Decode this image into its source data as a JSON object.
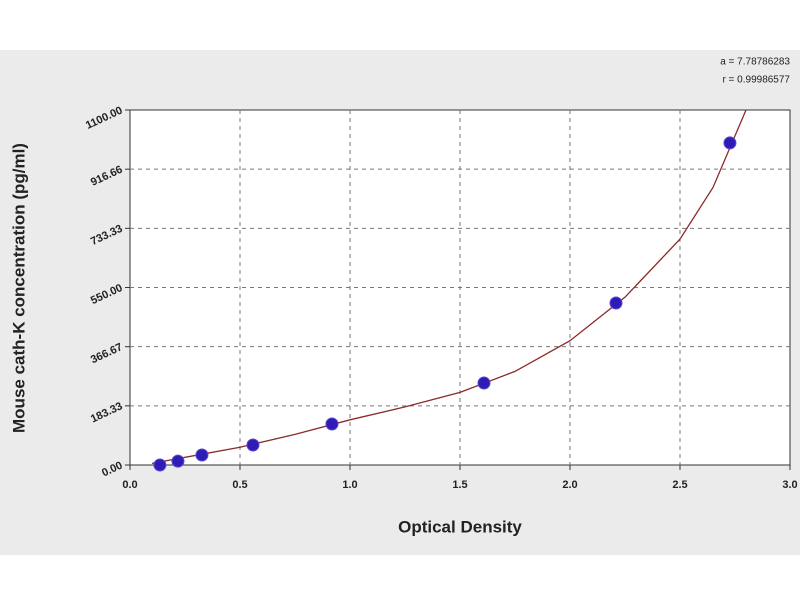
{
  "chart_data": {
    "type": "scatter",
    "x_label": "Optical Density",
    "y_label": "Mouse cath-K concentration (pg/ml)",
    "annotations": [
      "a = 7.78786283",
      "r = 0.99986577"
    ],
    "x": [
      0.136,
      0.218,
      0.327,
      0.559,
      0.918,
      1.609,
      2.209,
      2.727
    ],
    "values": [
      0,
      12,
      31,
      62,
      127,
      254,
      502,
      998
    ],
    "color": "#2e1cb4",
    "fit_curve": {
      "color": "#8b2a2a",
      "x": [
        0.1,
        0.3,
        0.5,
        0.75,
        1.0,
        1.25,
        1.5,
        1.75,
        2.0,
        2.25,
        2.5,
        2.65,
        2.8
      ],
      "y": [
        5,
        30,
        55,
        95,
        140,
        180,
        225,
        290,
        385,
        520,
        700,
        860,
        1100
      ]
    },
    "xlim": [
      0,
      3
    ],
    "ylim": [
      0,
      1100
    ],
    "xticks": [
      {
        "value": 0,
        "label": "0.0"
      },
      0.5,
      {
        "value": 1,
        "label": "1.0"
      },
      1.5,
      {
        "value": 2,
        "label": "2.0"
      },
      2.5,
      {
        "value": 3,
        "label": "3.0"
      }
    ],
    "yticks": [
      {
        "value": 0,
        "label": "0.00"
      },
      183.33,
      366.67,
      {
        "value": 550,
        "label": "550.00"
      },
      733.33,
      916.66,
      {
        "value": 1100,
        "label": "1100.00"
      }
    ],
    "grid": true
  }
}
